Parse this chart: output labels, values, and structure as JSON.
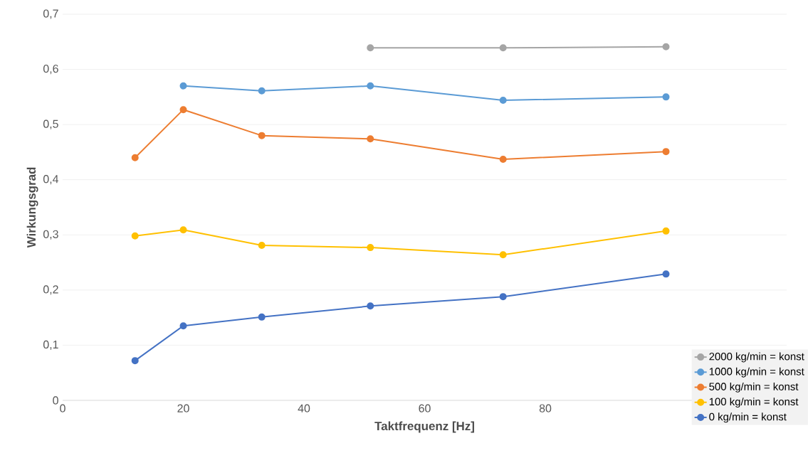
{
  "chart_data": {
    "type": "line",
    "xlabel": "Taktfrequenz [Hz]",
    "ylabel": "Wirkungsgrad",
    "xlim": [
      0,
      120
    ],
    "xticks": [
      0,
      20,
      40,
      60,
      80
    ],
    "ylim": [
      0,
      0.7
    ],
    "yticks": [
      {
        "value": 0,
        "label": "0"
      },
      {
        "value": 0.1,
        "label": "0,1"
      },
      {
        "value": 0.2,
        "label": "0,2"
      },
      {
        "value": 0.3,
        "label": "0,3"
      },
      {
        "value": 0.4,
        "label": "0,4"
      },
      {
        "value": 0.5,
        "label": "0,5"
      },
      {
        "value": 0.6,
        "label": "0,6"
      },
      {
        "value": 0.7,
        "label": "0,7"
      }
    ],
    "grid": "y",
    "legend": "bottom right",
    "marker": "circle",
    "line_style": "solid",
    "series": [
      {
        "name": "2000 kg/min = konst",
        "color": "#a5a5a5",
        "x": [
          51,
          73,
          100
        ],
        "values": [
          0.639,
          0.639,
          0.641
        ]
      },
      {
        "name": "1000 kg/min = konst",
        "color": "#5b9bd5",
        "x": [
          20,
          33,
          51,
          73,
          100
        ],
        "values": [
          0.57,
          0.561,
          0.57,
          0.544,
          0.55
        ]
      },
      {
        "name": "500 kg/min = konst",
        "color": "#ed7d31",
        "x": [
          12,
          20,
          33,
          51,
          73,
          100
        ],
        "values": [
          0.44,
          0.527,
          0.48,
          0.474,
          0.437,
          0.451
        ]
      },
      {
        "name": "100 kg/min = konst",
        "color": "#ffc000",
        "x": [
          12,
          20,
          33,
          51,
          73,
          100
        ],
        "values": [
          0.298,
          0.309,
          0.281,
          0.277,
          0.264,
          0.307
        ]
      },
      {
        "name": "0 kg/min = konst",
        "color": "#4472c4",
        "x": [
          12,
          20,
          33,
          51,
          73,
          100
        ],
        "values": [
          0.072,
          0.135,
          0.151,
          0.171,
          0.188,
          0.229
        ]
      }
    ]
  }
}
